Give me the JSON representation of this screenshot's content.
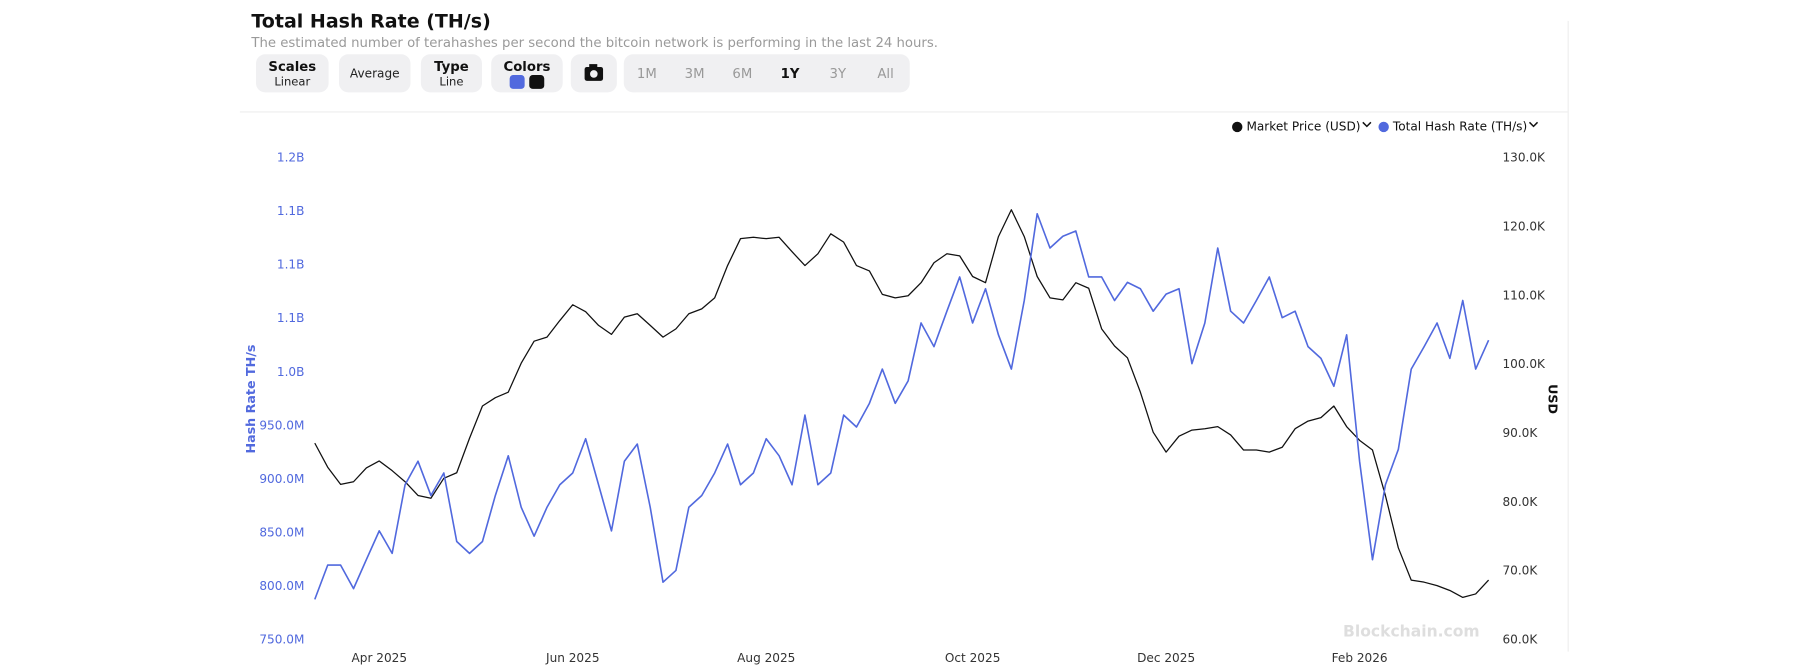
{
  "chart_data": {
    "type": "line",
    "title": "Total Hash Rate (TH/s)",
    "subtitle": "The estimated number of terahashes per second the bitcoin network is performing in the last 24 hours.",
    "y_label": "Hash Rate TH/s",
    "y2_label": "USD",
    "watermark": "Blockchain.com",
    "legend": "top-right",
    "grid": false,
    "categories": [
      null,
      null,
      null,
      null,
      null,
      "Apr 2025",
      null,
      null,
      null,
      null,
      null,
      null,
      null,
      null,
      null,
      null,
      null,
      null,
      null,
      null,
      "Jun 2025",
      null,
      null,
      null,
      null,
      null,
      null,
      null,
      null,
      null,
      null,
      null,
      null,
      null,
      null,
      "Aug 2025",
      null,
      null,
      null,
      null,
      null,
      null,
      null,
      null,
      null,
      null,
      null,
      null,
      null,
      null,
      null,
      "Oct 2025",
      null,
      null,
      null,
      null,
      null,
      null,
      null,
      null,
      null,
      null,
      null,
      null,
      null,
      null,
      "Dec 2025",
      null,
      null,
      null,
      null,
      null,
      null,
      null,
      null,
      null,
      null,
      null,
      null,
      null,
      null,
      "Feb 2026",
      null,
      null,
      null,
      null,
      null,
      null,
      null,
      null,
      null,
      null
    ],
    "series": [
      {
        "name": "Market Price (USD)",
        "color": "#111111",
        "axis": "y2",
        "values": [
          88600,
          85100,
          82600,
          83000,
          85000,
          86000,
          84600,
          83000,
          81000,
          80600,
          83500,
          84300,
          89300,
          94000,
          95200,
          96000,
          100200,
          103400,
          104000,
          106400,
          108700,
          107700,
          105700,
          104400,
          106900,
          107400,
          105700,
          104000,
          105200,
          107400,
          108100,
          109700,
          114400,
          118300,
          118500,
          118300,
          118500,
          116400,
          114400,
          116100,
          119000,
          117800,
          114400,
          113600,
          110200,
          109700,
          110000,
          111900,
          114800,
          116100,
          115800,
          112800,
          111900,
          118600,
          122500,
          118600,
          112800,
          109700,
          109400,
          111900,
          111100,
          105200,
          102700,
          101000,
          96000,
          90200,
          87300,
          89600,
          90500,
          90700,
          91000,
          89800,
          87600,
          87600,
          87300,
          88000,
          90700,
          91800,
          92300,
          94000,
          91000,
          89000,
          87600,
          81000,
          73400,
          68700,
          68400,
          67900,
          67200,
          66200,
          66700,
          68700
        ]
      },
      {
        "name": "Total Hash Rate (TH/s)",
        "color": "#5169de",
        "axis": "y",
        "values": [
          788000000,
          820000000,
          820000000,
          798000000,
          825000000,
          852000000,
          831000000,
          895000000,
          917000000,
          885000000,
          906000000,
          842000000,
          831000000,
          842000000,
          885000000,
          922000000,
          874000000,
          847000000,
          874000000,
          895000000,
          906000000,
          938000000,
          895000000,
          852000000,
          917000000,
          933000000,
          874000000,
          804000000,
          815000000,
          874000000,
          885000000,
          906000000,
          933000000,
          895000000,
          906000000,
          938000000,
          922000000,
          895000000,
          960000000,
          895000000,
          906000000,
          960000000,
          949000000,
          971000000,
          1003000000,
          971000000,
          992000000,
          1046000000,
          1024000000,
          1057000000,
          1089000000,
          1046000000,
          1078000000,
          1035000000,
          1003000000,
          1067000000,
          1148000000,
          1116000000,
          1127000000,
          1132000000,
          1089000000,
          1089000000,
          1067000000,
          1084000000,
          1078000000,
          1057000000,
          1073000000,
          1078000000,
          1008000000,
          1046000000,
          1116000000,
          1057000000,
          1046000000,
          1067000000,
          1089000000,
          1051000000,
          1057000000,
          1024000000,
          1013000000,
          987000000,
          1035000000,
          917000000,
          825000000,
          895000000,
          928000000,
          1003000000,
          1024000000,
          1046000000,
          1013000000,
          1067000000,
          1003000000,
          1030000000
        ]
      }
    ],
    "ylim": [
      750000000,
      1200000000
    ],
    "yticks": [
      {
        "value": 750000000,
        "label": "750.0M"
      },
      {
        "value": 800000000,
        "label": "800.0M"
      },
      {
        "value": 850000000,
        "label": "850.0M"
      },
      {
        "value": 900000000,
        "label": "900.0M"
      },
      {
        "value": 950000000,
        "label": "950.0M"
      },
      {
        "value": 1000000000,
        "label": "1.0B"
      },
      {
        "value": 1050000000,
        "label": "1.1B"
      },
      {
        "value": 1100000000,
        "label": "1.1B"
      },
      {
        "value": 1150000000,
        "label": "1.1B"
      },
      {
        "value": 1200000000,
        "label": "1.2B"
      }
    ],
    "y2lim": [
      60000,
      130000
    ],
    "y2ticks": [
      {
        "value": 60000,
        "label": "60.0K"
      },
      {
        "value": 70000,
        "label": "70.0K"
      },
      {
        "value": 80000,
        "label": "80.0K"
      },
      {
        "value": 90000,
        "label": "90.0K"
      },
      {
        "value": 100000,
        "label": "100.0K"
      },
      {
        "value": 110000,
        "label": "110.0K"
      },
      {
        "value": 120000,
        "label": "120.0K"
      },
      {
        "value": 130000,
        "label": "130.0K"
      }
    ]
  },
  "toolbar": {
    "buttons": [
      {
        "label": "Scales",
        "value": "Linear"
      },
      {
        "label": "Average"
      },
      {
        "label": "Type",
        "value": "Line"
      },
      {
        "label": "Colors"
      }
    ],
    "ranges": [
      "1M",
      "3M",
      "6M",
      "1Y",
      "3Y",
      "All"
    ],
    "active_range": "1Y"
  }
}
